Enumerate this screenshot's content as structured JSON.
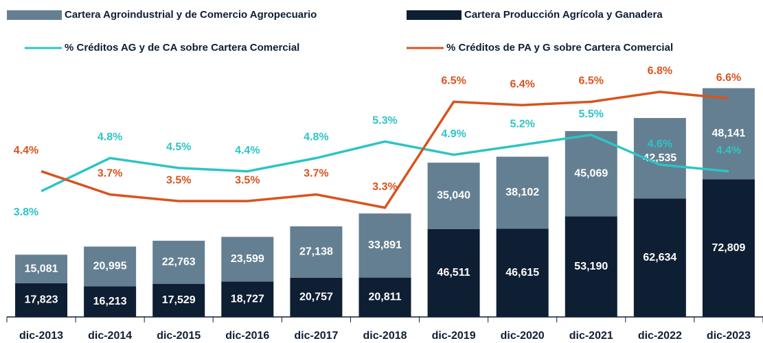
{
  "chart_data": {
    "type": "bar_line",
    "categories": [
      "dic-2013",
      "dic-2014",
      "dic-2015",
      "dic-2016",
      "dic-2017",
      "dic-2018",
      "dic-2019",
      "dic-2020",
      "dic-2021",
      "dic-2022",
      "dic-2023"
    ],
    "series": [
      {
        "name": "Cartera Producción Agrícola y Ganadera",
        "color": "#0e1e33",
        "kind": "bar",
        "values": [
          17823,
          16213,
          17529,
          18727,
          20757,
          20811,
          46511,
          46615,
          53190,
          62634,
          72809
        ],
        "value_labels": [
          "17,823",
          "16,213",
          "17,529",
          "18,727",
          "20,757",
          "20,811",
          "46,511",
          "46,615",
          "53,190",
          "62,634",
          "72,809"
        ]
      },
      {
        "name": "Cartera Agroindustrial y de Comercio Agropecuario",
        "color": "#647f92",
        "kind": "bar",
        "values": [
          15081,
          20995,
          22763,
          23599,
          27138,
          33891,
          35040,
          38102,
          45069,
          42535,
          48141
        ],
        "value_labels": [
          "15,081",
          "20,995",
          "22,763",
          "23,599",
          "27,138",
          "33,891",
          "35,040",
          "38,102",
          "45,069",
          "42,535",
          "48,141"
        ]
      },
      {
        "name": "% Créditos AG y de CA sobre Cartera Comercial",
        "color": "#2ec4c4",
        "kind": "line",
        "axis": "y2",
        "values": [
          3.8,
          4.8,
          4.5,
          4.4,
          4.8,
          5.3,
          4.9,
          5.2,
          5.5,
          4.6,
          4.4
        ],
        "value_labels": [
          "3.8%",
          "4.8%",
          "4.5%",
          "4.4%",
          "4.8%",
          "5.3%",
          "4.9%",
          "5.2%",
          "5.5%",
          "4.6%",
          "4.4%"
        ]
      },
      {
        "name": "% Créditos de PA y G sobre Cartera Comercial",
        "color": "#d9531e",
        "kind": "line",
        "axis": "y2",
        "values": [
          4.4,
          3.7,
          3.5,
          3.5,
          3.7,
          3.3,
          6.5,
          6.4,
          6.5,
          6.8,
          6.6
        ],
        "value_labels": [
          "4.4%",
          "3.7%",
          "3.5%",
          "3.5%",
          "3.7%",
          "3.3%",
          "6.5%",
          "6.4%",
          "6.5%",
          "6.8%",
          "6.6%"
        ]
      }
    ],
    "ylim": [
      0,
      140000
    ],
    "y2lim": [
      0,
      8
    ]
  }
}
